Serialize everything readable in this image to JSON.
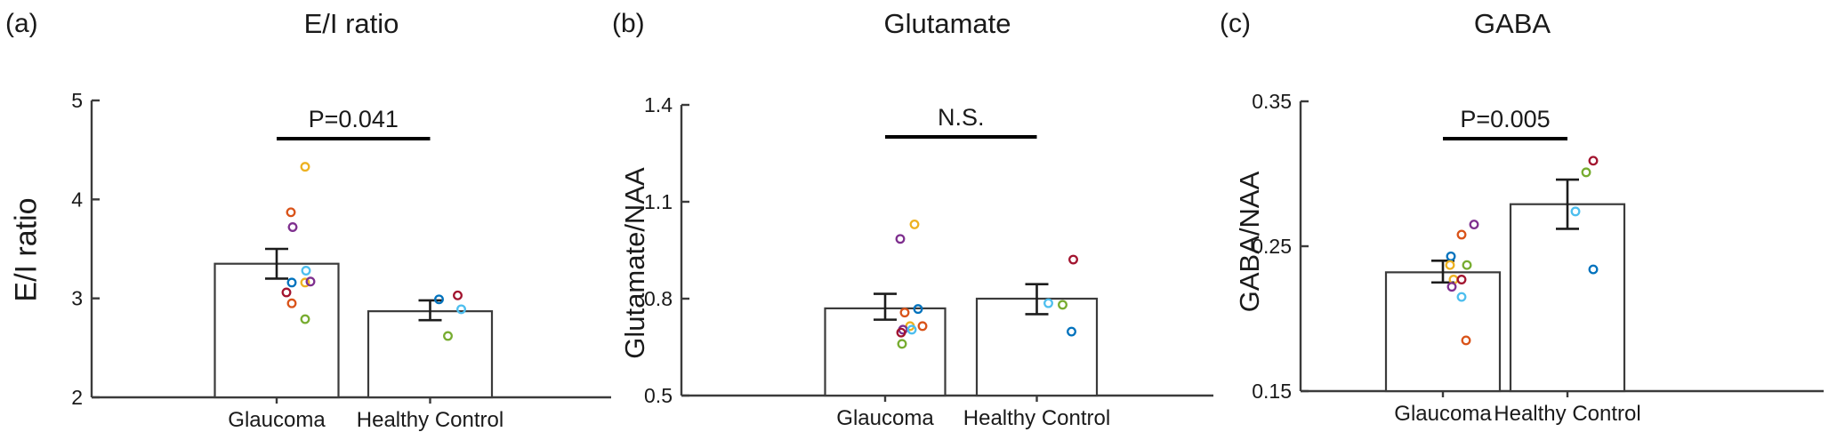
{
  "palette": {
    "blue": "#0072BD",
    "orange": "#D95319",
    "yellow": "#EDB120",
    "purple": "#7E2F8E",
    "green": "#77AC30",
    "light_blue": "#4DBEEE",
    "dark_red": "#A2142F",
    "axis": "#3b3b3b",
    "significance_line": "#000000",
    "bar_fill": "#ffffff",
    "text": "#1a1a1a"
  },
  "chart_data": [
    {
      "type": "bar",
      "panel_label": "(a)",
      "title": "E/I ratio",
      "ylabel": "E/I ratio",
      "xlabel": "",
      "categories": [
        "Glaucoma",
        "Healthy Control"
      ],
      "ylim": [
        2,
        5
      ],
      "yticks": [
        2,
        3,
        4,
        5
      ],
      "ytick_labels": [
        "2",
        "3",
        "4",
        "5"
      ],
      "grid": false,
      "legend_position": "none",
      "significance_label": "P=0.041",
      "series": [
        {
          "name": "Glaucoma",
          "mean": 3.35,
          "err_low": 3.2,
          "err_high": 3.5,
          "points": [
            {
              "v": 4.33,
              "color": "yellow",
              "jitter": 32
            },
            {
              "v": 3.87,
              "color": "orange",
              "jitter": 16
            },
            {
              "v": 3.72,
              "color": "purple",
              "jitter": 18
            },
            {
              "v": 3.28,
              "color": "light_blue",
              "jitter": 33
            },
            {
              "v": 3.16,
              "color": "blue",
              "jitter": 17
            },
            {
              "v": 3.16,
              "color": "yellow",
              "jitter": 32
            },
            {
              "v": 3.17,
              "color": "purple",
              "jitter": 38
            },
            {
              "v": 3.06,
              "color": "dark_red",
              "jitter": 11
            },
            {
              "v": 2.95,
              "color": "orange",
              "jitter": 17
            },
            {
              "v": 2.79,
              "color": "green",
              "jitter": 32
            }
          ]
        },
        {
          "name": "Healthy Control",
          "mean": 2.87,
          "err_low": 2.78,
          "err_high": 2.98,
          "points": [
            {
              "v": 2.99,
              "color": "blue",
              "jitter": 10
            },
            {
              "v": 3.03,
              "color": "dark_red",
              "jitter": 31
            },
            {
              "v": 2.89,
              "color": "light_blue",
              "jitter": 35
            },
            {
              "v": 2.62,
              "color": "green",
              "jitter": 20
            }
          ]
        }
      ]
    },
    {
      "type": "bar",
      "panel_label": "(b)",
      "title": "Glutamate",
      "ylabel": "Glutamate/NAA",
      "xlabel": "",
      "categories": [
        "Glaucoma",
        "Healthy Control"
      ],
      "ylim": [
        0.5,
        1.4
      ],
      "yticks": [
        0.5,
        0.8,
        1.1,
        1.4
      ],
      "ytick_labels": [
        "0.5",
        "0.8",
        "1.1",
        "1.4"
      ],
      "grid": false,
      "legend_position": "none",
      "significance_label": "N.S.",
      "series": [
        {
          "name": "Glaucoma",
          "mean": 0.77,
          "err_low": 0.735,
          "err_high": 0.815,
          "points": [
            {
              "v": 1.03,
              "color": "yellow",
              "jitter": 33
            },
            {
              "v": 0.985,
              "color": "purple",
              "jitter": 17
            },
            {
              "v": 0.757,
              "color": "orange",
              "jitter": 22
            },
            {
              "v": 0.768,
              "color": "blue",
              "jitter": 37
            },
            {
              "v": 0.715,
              "color": "yellow",
              "jitter": 28
            },
            {
              "v": 0.715,
              "color": "orange",
              "jitter": 42
            },
            {
              "v": 0.704,
              "color": "purple",
              "jitter": 20
            },
            {
              "v": 0.695,
              "color": "dark_red",
              "jitter": 18
            },
            {
              "v": 0.704,
              "color": "light_blue",
              "jitter": 30
            },
            {
              "v": 0.66,
              "color": "green",
              "jitter": 19
            }
          ]
        },
        {
          "name": "Healthy Control",
          "mean": 0.8,
          "err_low": 0.752,
          "err_high": 0.845,
          "points": [
            {
              "v": 0.921,
              "color": "dark_red",
              "jitter": 41
            },
            {
              "v": 0.786,
              "color": "light_blue",
              "jitter": 13
            },
            {
              "v": 0.781,
              "color": "green",
              "jitter": 29
            },
            {
              "v": 0.698,
              "color": "blue",
              "jitter": 39
            }
          ]
        }
      ]
    },
    {
      "type": "bar",
      "panel_label": "(c)",
      "title": "GABA",
      "ylabel": "GABA/NAA",
      "xlabel": "",
      "categories": [
        "Glaucoma",
        "Healthy Control"
      ],
      "ylim": [
        0.15,
        0.35
      ],
      "yticks": [
        0.15,
        0.25,
        0.35
      ],
      "ytick_labels": [
        "0.15",
        "0.25",
        "0.35"
      ],
      "grid": false,
      "legend_position": "none",
      "significance_label": "P=0.005",
      "series": [
        {
          "name": "Glaucoma",
          "mean": 0.232,
          "err_low": 0.225,
          "err_high": 0.24,
          "points": [
            {
              "v": 0.265,
              "color": "purple",
              "jitter": 35
            },
            {
              "v": 0.258,
              "color": "orange",
              "jitter": 21
            },
            {
              "v": 0.243,
              "color": "blue",
              "jitter": 9
            },
            {
              "v": 0.237,
              "color": "yellow",
              "jitter": 8
            },
            {
              "v": 0.237,
              "color": "green",
              "jitter": 27
            },
            {
              "v": 0.227,
              "color": "yellow",
              "jitter": 12
            },
            {
              "v": 0.227,
              "color": "dark_red",
              "jitter": 21
            },
            {
              "v": 0.222,
              "color": "purple",
              "jitter": 10
            },
            {
              "v": 0.215,
              "color": "light_blue",
              "jitter": 21
            },
            {
              "v": 0.185,
              "color": "orange",
              "jitter": 26
            }
          ]
        },
        {
          "name": "Healthy Control",
          "mean": 0.279,
          "err_low": 0.262,
          "err_high": 0.296,
          "points": [
            {
              "v": 0.309,
              "color": "dark_red",
              "jitter": 29
            },
            {
              "v": 0.301,
              "color": "green",
              "jitter": 21
            },
            {
              "v": 0.274,
              "color": "light_blue",
              "jitter": 9
            },
            {
              "v": 0.234,
              "color": "blue",
              "jitter": 29
            }
          ]
        }
      ]
    }
  ]
}
